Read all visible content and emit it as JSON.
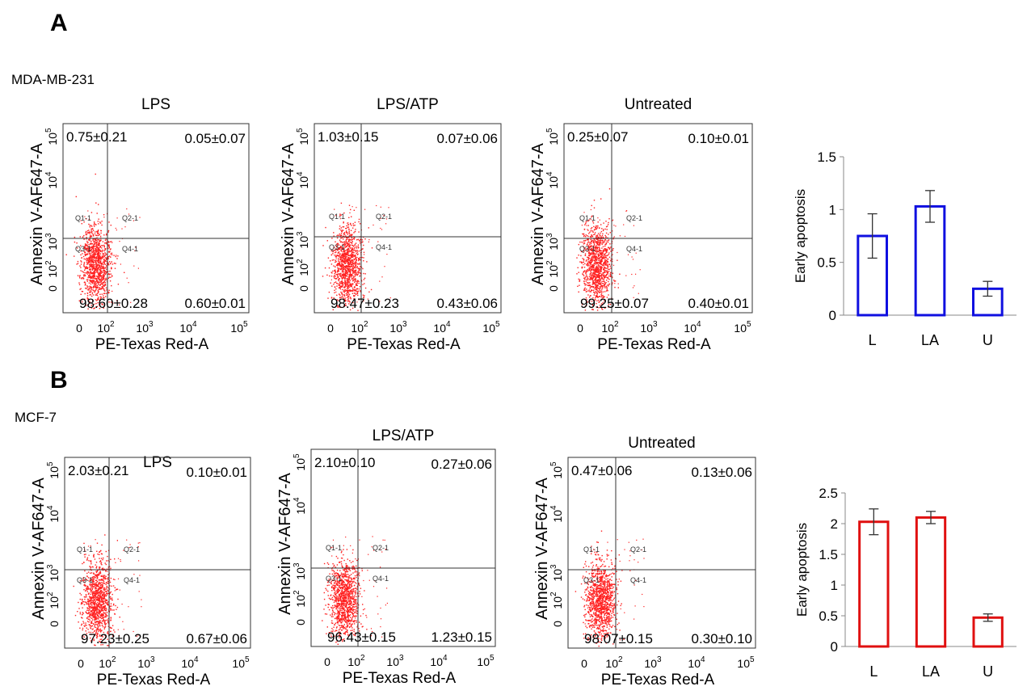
{
  "figure": {
    "panels": [
      {
        "letter": "A",
        "cell_line": "MDA-MB-231",
        "flow_plots": [
          {
            "title": "LPS",
            "y_axis_label": "Annexin V-AF647-A",
            "x_axis_label": "PE-Texas Red-A",
            "quadrant_values": {
              "upper_left": "0.75±0.21",
              "upper_right": "0.05±0.07",
              "lower_left": "98.60±0.28",
              "lower_right": "0.60±0.01"
            },
            "gate_labels": [
              "Q1-1",
              "Q2-1",
              "Q3-1",
              "Q4-1"
            ]
          },
          {
            "title": "LPS/ATP",
            "y_axis_label": "Annexin V-AF647-A",
            "x_axis_label": "PE-Texas Red-A",
            "quadrant_values": {
              "upper_left": "1.03±0.15",
              "upper_right": "0.07±0.06",
              "lower_left": "98.47±0.23",
              "lower_right": "0.43±0.06"
            },
            "gate_labels": [
              "Q1-1",
              "Q2-1",
              "Q3-1",
              "Q4-1"
            ]
          },
          {
            "title": "Untreated",
            "y_axis_label": "Annexin V-AF647-A",
            "x_axis_label": "PE-Texas Red-A",
            "quadrant_values": {
              "upper_left": "0.25±0.07",
              "upper_right": "0.10±0.01",
              "lower_left": "99.25±0.07",
              "lower_right": "0.40±0.01"
            },
            "gate_labels": [
              "Q1-1",
              "Q2-1",
              "Q3-1",
              "Q4-1"
            ]
          }
        ]
      },
      {
        "letter": "B",
        "cell_line": "MCF-7",
        "flow_plots": [
          {
            "title": "LPS",
            "y_axis_label": "Annexin V-AF647-A",
            "x_axis_label": "PE-Texas Red-A",
            "quadrant_values": {
              "upper_left": "2.03±0.21",
              "upper_right": "0.10±0.01",
              "lower_left": "97.23±0.25",
              "lower_right": "0.67±0.06"
            },
            "gate_labels": [
              "Q1-1",
              "Q2-1",
              "Q3-1",
              "Q4-1"
            ]
          },
          {
            "title": "LPS/ATP",
            "y_axis_label": "Annexin V-AF647-A",
            "x_axis_label": "PE-Texas Red-A",
            "quadrant_values": {
              "upper_left": "2.10±0.10",
              "upper_right": "0.27±0.06",
              "lower_left": "96.43±0.15",
              "lower_right": "1.23±0.15"
            },
            "gate_labels": [
              "Q1-1",
              "Q2-1",
              "Q3-1",
              "Q4-1"
            ]
          },
          {
            "title": "Untreated",
            "y_axis_label": "Annexin V-AF647-A",
            "x_axis_label": "PE-Texas Red-A",
            "quadrant_values": {
              "upper_left": "0.47±0.06",
              "upper_right": "0.13±0.06",
              "lower_left": "98.07±0.15",
              "lower_right": "0.30±0.10"
            },
            "gate_labels": [
              "Q1-1",
              "Q2-1",
              "Q3-1",
              "Q4-1"
            ]
          }
        ]
      }
    ],
    "flow_axis_ticks": {
      "x": [
        {
          "base": "0",
          "exp": ""
        },
        {
          "base": "10",
          "exp": "2"
        },
        {
          "base": "10",
          "exp": "3"
        },
        {
          "base": "10",
          "exp": "4"
        },
        {
          "base": "10",
          "exp": "5"
        }
      ],
      "y": [
        {
          "base": "0",
          "exp": ""
        },
        {
          "base": "10",
          "exp": "2"
        },
        {
          "base": "10",
          "exp": "3"
        },
        {
          "base": "10",
          "exp": "4"
        },
        {
          "base": "10",
          "exp": "5"
        }
      ]
    },
    "scatter_color": "#ff2020"
  },
  "chart_data": [
    {
      "type": "bar",
      "panel": "A",
      "categories": [
        "L",
        "LA",
        "U"
      ],
      "values": [
        0.75,
        1.03,
        0.25
      ],
      "errors": [
        0.21,
        0.15,
        0.07
      ],
      "ylabel": "Early apoptosis",
      "xlabel": "",
      "ylim": [
        0,
        1.5
      ],
      "yticks": [
        0,
        0.5,
        1,
        1.5
      ],
      "ytick_labels": [
        "0",
        "0.5",
        "1",
        "1.5"
      ],
      "bar_color": "#1010e0",
      "bar_fill": "#ffffff",
      "grid": false
    },
    {
      "type": "bar",
      "panel": "B",
      "categories": [
        "L",
        "LA",
        "U"
      ],
      "values": [
        2.03,
        2.1,
        0.47
      ],
      "errors": [
        0.21,
        0.1,
        0.06
      ],
      "ylabel": "Early apoptosis",
      "xlabel": "",
      "ylim": [
        0,
        2.5
      ],
      "yticks": [
        0,
        0.5,
        1,
        1.5,
        2,
        2.5
      ],
      "ytick_labels": [
        "0",
        "0.5",
        "1",
        "1.5",
        "2",
        "2.5"
      ],
      "bar_color": "#e01010",
      "bar_fill": "#ffffff",
      "grid": false
    }
  ]
}
